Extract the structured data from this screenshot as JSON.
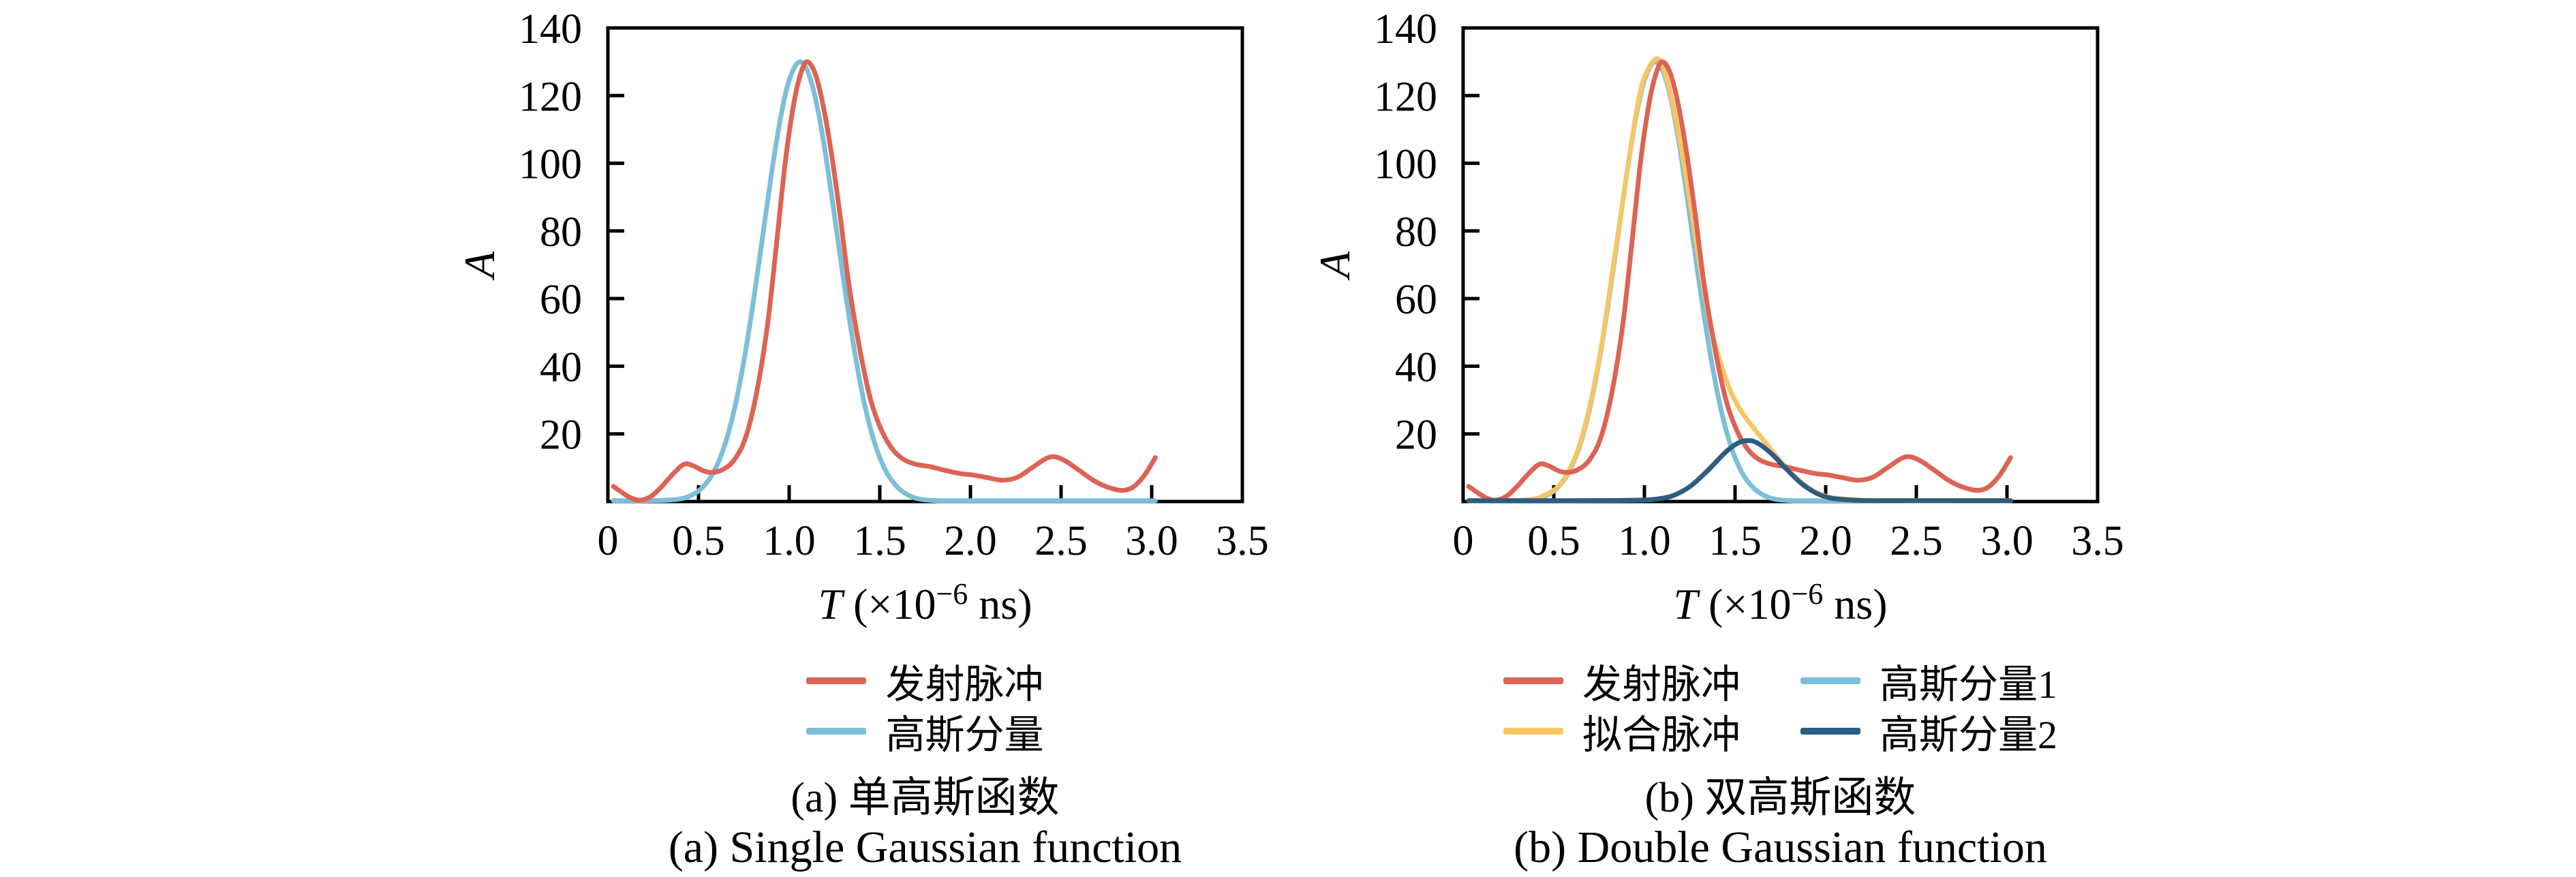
{
  "figure": {
    "background": "#ffffff",
    "colors": {
      "emission": "#DC6455",
      "gauss": "#7DBED8",
      "fit": "#F7C664",
      "gauss2": "#2D5D80",
      "axis": "#000000"
    }
  },
  "panels": [
    {
      "id": "a",
      "caption_zh": "(a) 单高斯函数",
      "caption_en": "(a) Single Gaussian function",
      "legend_columns": 1
    },
    {
      "id": "b",
      "caption_zh": "(b) 双高斯函数",
      "caption_en": "(b) Double Gaussian function",
      "legend_columns": 2
    }
  ],
  "chart_data": [
    {
      "type": "line",
      "title": "",
      "xlabel_parts": [
        {
          "text": "T",
          "italic": true
        },
        {
          "text": " (×10"
        },
        {
          "text": "−6",
          "sup": true
        },
        {
          "text": " ns)"
        }
      ],
      "ylabel": "A",
      "xlim": [
        0,
        3.5
      ],
      "ylim": [
        0,
        140
      ],
      "x_ticks": [
        0,
        0.5,
        1.0,
        1.5,
        2.0,
        2.5,
        3.0,
        3.5
      ],
      "x_tick_labels": [
        "0",
        "0.5",
        "1.0",
        "1.5",
        "2.0",
        "2.5",
        "3.0",
        "3.5"
      ],
      "x_tick_marks": [
        0.5,
        1.0,
        1.5,
        2.0,
        2.5,
        3.0
      ],
      "y_ticks": [
        20,
        40,
        60,
        80,
        100,
        120,
        140
      ],
      "y_tick_labels": [
        "20",
        "40",
        "60",
        "80",
        "100",
        "120",
        "140"
      ],
      "y_tick_marks": [
        20,
        40,
        60,
        80,
        100,
        120
      ],
      "grid": false,
      "legend_position": "below",
      "legend_order": [
        0,
        1
      ],
      "draw_order": [
        1,
        0
      ],
      "series": [
        {
          "key": "emission-pulse",
          "name": "发射脉冲",
          "color_key": "emission",
          "points": [
            [
              0.03,
              4.5
            ],
            [
              0.08,
              2.6
            ],
            [
              0.13,
              1.0
            ],
            [
              0.18,
              0.4
            ],
            [
              0.24,
              1.6
            ],
            [
              0.3,
              4.6
            ],
            [
              0.36,
              8.2
            ],
            [
              0.42,
              11.0
            ],
            [
              0.47,
              10.6
            ],
            [
              0.53,
              9.0
            ],
            [
              0.58,
              8.6
            ],
            [
              0.64,
              9.6
            ],
            [
              0.7,
              12.5
            ],
            [
              0.76,
              19.0
            ],
            [
              0.82,
              32.0
            ],
            [
              0.88,
              52.0
            ],
            [
              0.93,
              76.0
            ],
            [
              0.98,
              101.0
            ],
            [
              1.03,
              119.0
            ],
            [
              1.07,
              127.5
            ],
            [
              1.1,
              130.0
            ],
            [
              1.14,
              127.0
            ],
            [
              1.18,
              119.0
            ],
            [
              1.23,
              104.0
            ],
            [
              1.28,
              85.0
            ],
            [
              1.33,
              64.0
            ],
            [
              1.39,
              45.0
            ],
            [
              1.45,
              30.0
            ],
            [
              1.51,
              21.0
            ],
            [
              1.57,
              15.5
            ],
            [
              1.63,
              12.5
            ],
            [
              1.7,
              11.0
            ],
            [
              1.78,
              10.3
            ],
            [
              1.86,
              9.2
            ],
            [
              1.94,
              8.3
            ],
            [
              2.02,
              7.8
            ],
            [
              2.1,
              7.0
            ],
            [
              2.18,
              6.3
            ],
            [
              2.26,
              7.2
            ],
            [
              2.34,
              10.0
            ],
            [
              2.42,
              12.8
            ],
            [
              2.47,
              13.2
            ],
            [
              2.53,
              11.8
            ],
            [
              2.6,
              9.2
            ],
            [
              2.68,
              6.2
            ],
            [
              2.76,
              4.2
            ],
            [
              2.84,
              3.3
            ],
            [
              2.9,
              4.4
            ],
            [
              2.96,
              7.8
            ],
            [
              3.02,
              13.0
            ]
          ]
        },
        {
          "key": "gaussian-component",
          "name": "高斯分量",
          "color_key": "gauss",
          "points": [
            [
              0.03,
              0.25
            ],
            [
              0.3,
              0.35
            ],
            [
              0.4,
              0.8
            ],
            [
              0.45,
              1.6
            ],
            [
              0.5,
              3.1
            ],
            [
              0.55,
              5.9
            ],
            [
              0.6,
              10.5
            ],
            [
              0.65,
              17.6
            ],
            [
              0.7,
              27.8
            ],
            [
              0.75,
              41.5
            ],
            [
              0.8,
              58.2
            ],
            [
              0.85,
              76.9
            ],
            [
              0.9,
              95.9
            ],
            [
              0.95,
              112.6
            ],
            [
              1.0,
              124.5
            ],
            [
              1.06,
              130.0
            ],
            [
              1.12,
              124.5
            ],
            [
              1.18,
              109.5
            ],
            [
              1.24,
              88.4
            ],
            [
              1.3,
              65.5
            ],
            [
              1.36,
              44.6
            ],
            [
              1.42,
              27.8
            ],
            [
              1.48,
              15.9
            ],
            [
              1.54,
              8.4
            ],
            [
              1.6,
              4.1
            ],
            [
              1.66,
              1.8
            ],
            [
              1.72,
              0.7
            ],
            [
              1.8,
              0.3
            ],
            [
              1.9,
              0.25
            ],
            [
              2.2,
              0.25
            ],
            [
              2.6,
              0.25
            ],
            [
              3.02,
              0.25
            ]
          ]
        }
      ]
    },
    {
      "type": "line",
      "title": "",
      "xlabel_parts": [
        {
          "text": "T",
          "italic": true
        },
        {
          "text": " (×10"
        },
        {
          "text": "−6",
          "sup": true
        },
        {
          "text": " ns)"
        }
      ],
      "ylabel": "A",
      "xlim": [
        0,
        3.5
      ],
      "ylim": [
        0,
        140
      ],
      "x_ticks": [
        0,
        0.5,
        1.0,
        1.5,
        2.0,
        2.5,
        3.0,
        3.5
      ],
      "x_tick_labels": [
        "0",
        "0.5",
        "1.0",
        "1.5",
        "2.0",
        "2.5",
        "3.0",
        "3.5"
      ],
      "x_tick_marks": [
        0.5,
        1.0,
        1.5,
        2.0,
        2.5,
        3.0
      ],
      "y_ticks": [
        20,
        40,
        60,
        80,
        100,
        120,
        140
      ],
      "y_tick_labels": [
        "20",
        "40",
        "60",
        "80",
        "100",
        "120",
        "140"
      ],
      "y_tick_marks": [
        20,
        40,
        60,
        80,
        100,
        120
      ],
      "grid": false,
      "legend_position": "below",
      "legend_order": [
        0,
        2,
        1,
        3
      ],
      "draw_order": [
        2,
        1,
        0,
        3
      ],
      "series": [
        {
          "key": "emission-pulse",
          "name": "发射脉冲",
          "color_key": "emission",
          "points": [
            [
              0.03,
              4.5
            ],
            [
              0.08,
              2.6
            ],
            [
              0.13,
              1.0
            ],
            [
              0.18,
              0.4
            ],
            [
              0.24,
              1.6
            ],
            [
              0.3,
              4.6
            ],
            [
              0.36,
              8.2
            ],
            [
              0.42,
              11.0
            ],
            [
              0.47,
              10.6
            ],
            [
              0.53,
              9.0
            ],
            [
              0.58,
              8.6
            ],
            [
              0.64,
              9.6
            ],
            [
              0.7,
              12.5
            ],
            [
              0.76,
              19.0
            ],
            [
              0.82,
              32.0
            ],
            [
              0.88,
              52.0
            ],
            [
              0.93,
              76.0
            ],
            [
              0.98,
              101.0
            ],
            [
              1.03,
              119.0
            ],
            [
              1.07,
              127.5
            ],
            [
              1.1,
              130.0
            ],
            [
              1.14,
              127.0
            ],
            [
              1.18,
              119.0
            ],
            [
              1.23,
              104.0
            ],
            [
              1.28,
              85.0
            ],
            [
              1.33,
              64.0
            ],
            [
              1.39,
              45.0
            ],
            [
              1.45,
              30.0
            ],
            [
              1.51,
              21.0
            ],
            [
              1.57,
              15.5
            ],
            [
              1.63,
              12.5
            ],
            [
              1.7,
              11.0
            ],
            [
              1.78,
              10.3
            ],
            [
              1.86,
              9.2
            ],
            [
              1.94,
              8.3
            ],
            [
              2.02,
              7.8
            ],
            [
              2.1,
              7.0
            ],
            [
              2.18,
              6.3
            ],
            [
              2.26,
              7.2
            ],
            [
              2.34,
              10.0
            ],
            [
              2.42,
              12.8
            ],
            [
              2.47,
              13.2
            ],
            [
              2.53,
              11.8
            ],
            [
              2.6,
              9.2
            ],
            [
              2.68,
              6.2
            ],
            [
              2.76,
              4.2
            ],
            [
              2.84,
              3.3
            ],
            [
              2.9,
              4.4
            ],
            [
              2.96,
              7.8
            ],
            [
              3.02,
              13.0
            ]
          ]
        },
        {
          "key": "fitted-pulse",
          "name": "拟合脉冲",
          "color_key": "fit",
          "points": [
            [
              0.03,
              0.3
            ],
            [
              0.35,
              0.5
            ],
            [
              0.45,
              1.9
            ],
            [
              0.55,
              6.1
            ],
            [
              0.65,
              18.0
            ],
            [
              0.75,
              42.0
            ],
            [
              0.85,
              77.5
            ],
            [
              0.95,
              113.2
            ],
            [
              1.0,
              125.3
            ],
            [
              1.07,
              130.9
            ],
            [
              1.12,
              125.6
            ],
            [
              1.18,
              111.2
            ],
            [
              1.24,
              92.7
            ],
            [
              1.3,
              72.1
            ],
            [
              1.36,
              53.0
            ],
            [
              1.42,
              41.0
            ],
            [
              1.48,
              32.0
            ],
            [
              1.54,
              26.2
            ],
            [
              1.6,
              21.9
            ],
            [
              1.66,
              17.9
            ],
            [
              1.72,
              13.9
            ],
            [
              1.78,
              10.1
            ],
            [
              1.86,
              5.9
            ],
            [
              1.94,
              2.9
            ],
            [
              2.02,
              1.3
            ],
            [
              2.1,
              0.8
            ],
            [
              2.2,
              0.4
            ],
            [
              2.4,
              0.25
            ],
            [
              2.7,
              0.25
            ],
            [
              3.02,
              0.25
            ]
          ]
        },
        {
          "key": "gaussian-component-1",
          "name": "高斯分量1",
          "color_key": "gauss",
          "points": [
            [
              0.03,
              0.25
            ],
            [
              0.3,
              0.35
            ],
            [
              0.4,
              0.8
            ],
            [
              0.45,
              1.6
            ],
            [
              0.5,
              3.1
            ],
            [
              0.55,
              5.9
            ],
            [
              0.6,
              10.5
            ],
            [
              0.65,
              17.6
            ],
            [
              0.7,
              27.8
            ],
            [
              0.75,
              41.5
            ],
            [
              0.8,
              58.2
            ],
            [
              0.85,
              76.9
            ],
            [
              0.9,
              95.9
            ],
            [
              0.95,
              112.6
            ],
            [
              1.0,
              124.5
            ],
            [
              1.06,
              130.0
            ],
            [
              1.12,
              124.5
            ],
            [
              1.18,
              109.5
            ],
            [
              1.24,
              88.4
            ],
            [
              1.3,
              65.5
            ],
            [
              1.36,
              44.6
            ],
            [
              1.42,
              27.8
            ],
            [
              1.48,
              15.9
            ],
            [
              1.54,
              8.4
            ],
            [
              1.6,
              4.1
            ],
            [
              1.66,
              1.8
            ],
            [
              1.72,
              0.7
            ],
            [
              1.8,
              0.3
            ],
            [
              1.9,
              0.25
            ],
            [
              2.2,
              0.25
            ],
            [
              2.6,
              0.25
            ],
            [
              3.02,
              0.25
            ]
          ]
        },
        {
          "key": "gaussian-component-2",
          "name": "高斯分量2",
          "color_key": "gauss2",
          "points": [
            [
              0.03,
              0.25
            ],
            [
              0.5,
              0.25
            ],
            [
              0.8,
              0.3
            ],
            [
              0.95,
              0.4
            ],
            [
              1.05,
              0.6
            ],
            [
              1.15,
              1.6
            ],
            [
              1.25,
              4.4
            ],
            [
              1.35,
              9.2
            ],
            [
              1.45,
              14.7
            ],
            [
              1.52,
              17.4
            ],
            [
              1.57,
              18.0
            ],
            [
              1.62,
              17.4
            ],
            [
              1.7,
              14.2
            ],
            [
              1.78,
              9.8
            ],
            [
              1.86,
              5.6
            ],
            [
              1.94,
              2.7
            ],
            [
              2.02,
              1.1
            ],
            [
              2.1,
              0.6
            ],
            [
              2.2,
              0.3
            ],
            [
              2.4,
              0.25
            ],
            [
              2.8,
              0.25
            ],
            [
              3.02,
              0.25
            ]
          ]
        }
      ]
    }
  ]
}
